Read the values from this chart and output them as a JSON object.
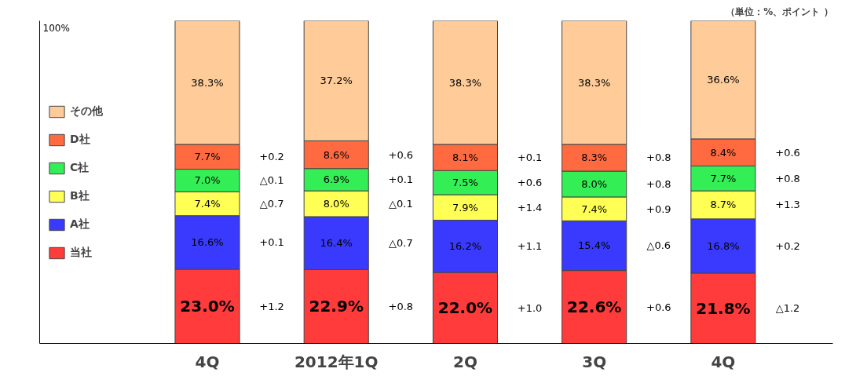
{
  "chart_data": {
    "type": "bar",
    "stacked": true,
    "subtitle": "（単位：%、ポイント ）",
    "categories": [
      "4Q",
      "2012年1Q",
      "2Q",
      "3Q",
      "4Q"
    ],
    "ylim": [
      0,
      100
    ],
    "legend": "left",
    "series": [
      {
        "name": "当社",
        "color": "#ff3b3b",
        "values": [
          23.0,
          22.9,
          22.0,
          22.6,
          21.8
        ],
        "value_labels": [
          "23.0%",
          "22.9%",
          "22.0%",
          "22.6%",
          "21.8%"
        ]
      },
      {
        "name": "A社",
        "color": "#3a3aff",
        "values": [
          16.6,
          16.4,
          16.2,
          15.4,
          16.8
        ],
        "value_labels": [
          "16.6%",
          "16.4%",
          "16.2%",
          "15.4%",
          "16.8%"
        ]
      },
      {
        "name": "B社",
        "color": "#ffff55",
        "values": [
          7.4,
          8.0,
          7.9,
          7.4,
          8.7
        ],
        "value_labels": [
          "7.4%",
          "8.0%",
          "7.9%",
          "7.4%",
          "8.7%"
        ]
      },
      {
        "name": "C社",
        "color": "#33ee55",
        "values": [
          7.0,
          6.9,
          7.5,
          8.0,
          7.7
        ],
        "value_labels": [
          "7.0%",
          "6.9%",
          "7.5%",
          "8.0%",
          "7.7%"
        ]
      },
      {
        "name": "D社",
        "color": "#ff6a40",
        "values": [
          7.7,
          8.6,
          8.1,
          8.3,
          8.4
        ],
        "value_labels": [
          "7.7%",
          "8.6%",
          "8.1%",
          "8.3%",
          "8.4%"
        ]
      },
      {
        "name": "その他",
        "color": "#ffcc99",
        "values": [
          38.3,
          37.2,
          38.3,
          38.3,
          36.6
        ],
        "value_labels": [
          "38.3%",
          "37.2%",
          "38.3%",
          "38.3%",
          "36.6%"
        ]
      }
    ],
    "annotations": [
      "+1.2",
      "+0.1",
      "△0.7",
      "△0.1",
      "+0.2",
      "+0.8",
      "△0.7",
      "△0.1",
      "+0.1",
      "+0.6",
      "+1.0",
      "+1.1",
      "+1.4",
      "+0.6",
      "+0.1",
      "+0.6",
      "△0.6",
      "+0.9",
      "+0.8",
      "+0.8",
      "△1.2",
      "+0.2",
      "+1.3",
      "+0.8",
      "+0.6",
      "100%"
    ]
  }
}
